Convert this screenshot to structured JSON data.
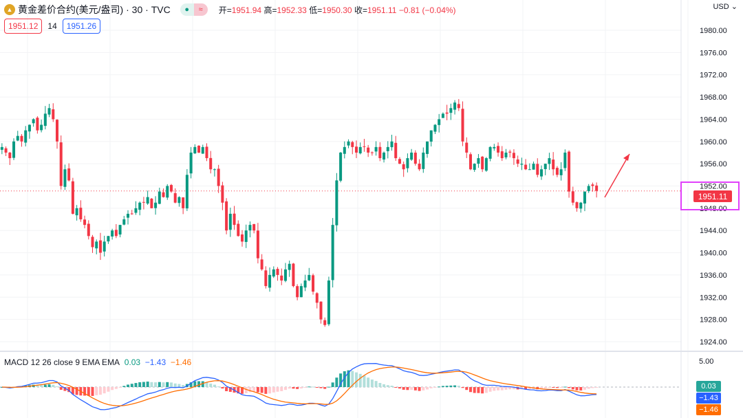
{
  "header": {
    "title": "黄金差价合约(美元/盎司)",
    "interval": "30",
    "source": "TVC",
    "open_label": "开=",
    "open": "1951.94",
    "high_label": "高=",
    "high": "1952.33",
    "low_label": "低=",
    "low": "1950.30",
    "close_label": "收=",
    "close": "1951.11",
    "change": "−0.81 (−0.04%)"
  },
  "quote": {
    "bid": "1951.12",
    "spread": "14",
    "ask": "1951.26"
  },
  "currency": "USD",
  "last_price_tag": "1951.11",
  "macd": {
    "label": "MACD 12 26 close 9 EMA EMA",
    "hist": "0.03",
    "macd": "−1.43",
    "signal": "−1.46",
    "axis_tick": "5.00"
  },
  "colors": {
    "up": "#089981",
    "down": "#f23645",
    "macd": "#2962ff",
    "signal": "#ff6d00",
    "highlight": "#e040fb"
  },
  "chart_data": {
    "type": "candlestick",
    "ylim": [
      1922,
      1982
    ],
    "yticks": [
      "1980.00",
      "1976.00",
      "1972.00",
      "1968.00",
      "1964.00",
      "1960.00",
      "1956.00",
      "1952.00",
      "1948.00",
      "1944.00",
      "1940.00",
      "1936.00",
      "1932.00",
      "1928.00",
      "1924.00"
    ],
    "closes": [
      1959,
      1958,
      1957,
      1960,
      1961,
      1960,
      1962,
      1963,
      1964,
      1962,
      1963,
      1965,
      1966,
      1964,
      1960,
      1952,
      1955,
      1953,
      1947,
      1948,
      1946,
      1945,
      1943,
      1941,
      1942,
      1940,
      1942,
      1943,
      1944,
      1943,
      1945,
      1946,
      1947,
      1947,
      1948,
      1949,
      1949,
      1950,
      1948,
      1949,
      1951,
      1950,
      1952,
      1951,
      1949,
      1950,
      1948,
      1954,
      1958,
      1959,
      1958,
      1959,
      1957,
      1955,
      1955,
      1952,
      1949,
      1944,
      1947,
      1945,
      1943,
      1942,
      1944,
      1945,
      1944,
      1939,
      1937,
      1934,
      1936,
      1937,
      1936,
      1935,
      1937,
      1938,
      1934,
      1932,
      1934,
      1935,
      1936,
      1933,
      1931,
      1928,
      1927,
      1935,
      1945,
      1953,
      1958,
      1959,
      1960,
      1959,
      1958,
      1959,
      1959,
      1958,
      1958,
      1959,
      1957,
      1958,
      1959,
      1960,
      1957,
      1956,
      1955,
      1957,
      1958,
      1956,
      1955,
      1958,
      1960,
      1962,
      1963,
      1964,
      1965,
      1965,
      1966,
      1967,
      1966,
      1960,
      1958,
      1955,
      1956,
      1957,
      1955,
      1957,
      1959,
      1959,
      1958,
      1957,
      1958,
      1958,
      1957,
      1956,
      1956,
      1955,
      1955,
      1956,
      1954,
      1955,
      1956,
      1957,
      1955,
      1954,
      1955,
      1958,
      1951,
      1949,
      1948,
      1949,
      1951,
      1952,
      1952,
      1951.11
    ]
  }
}
